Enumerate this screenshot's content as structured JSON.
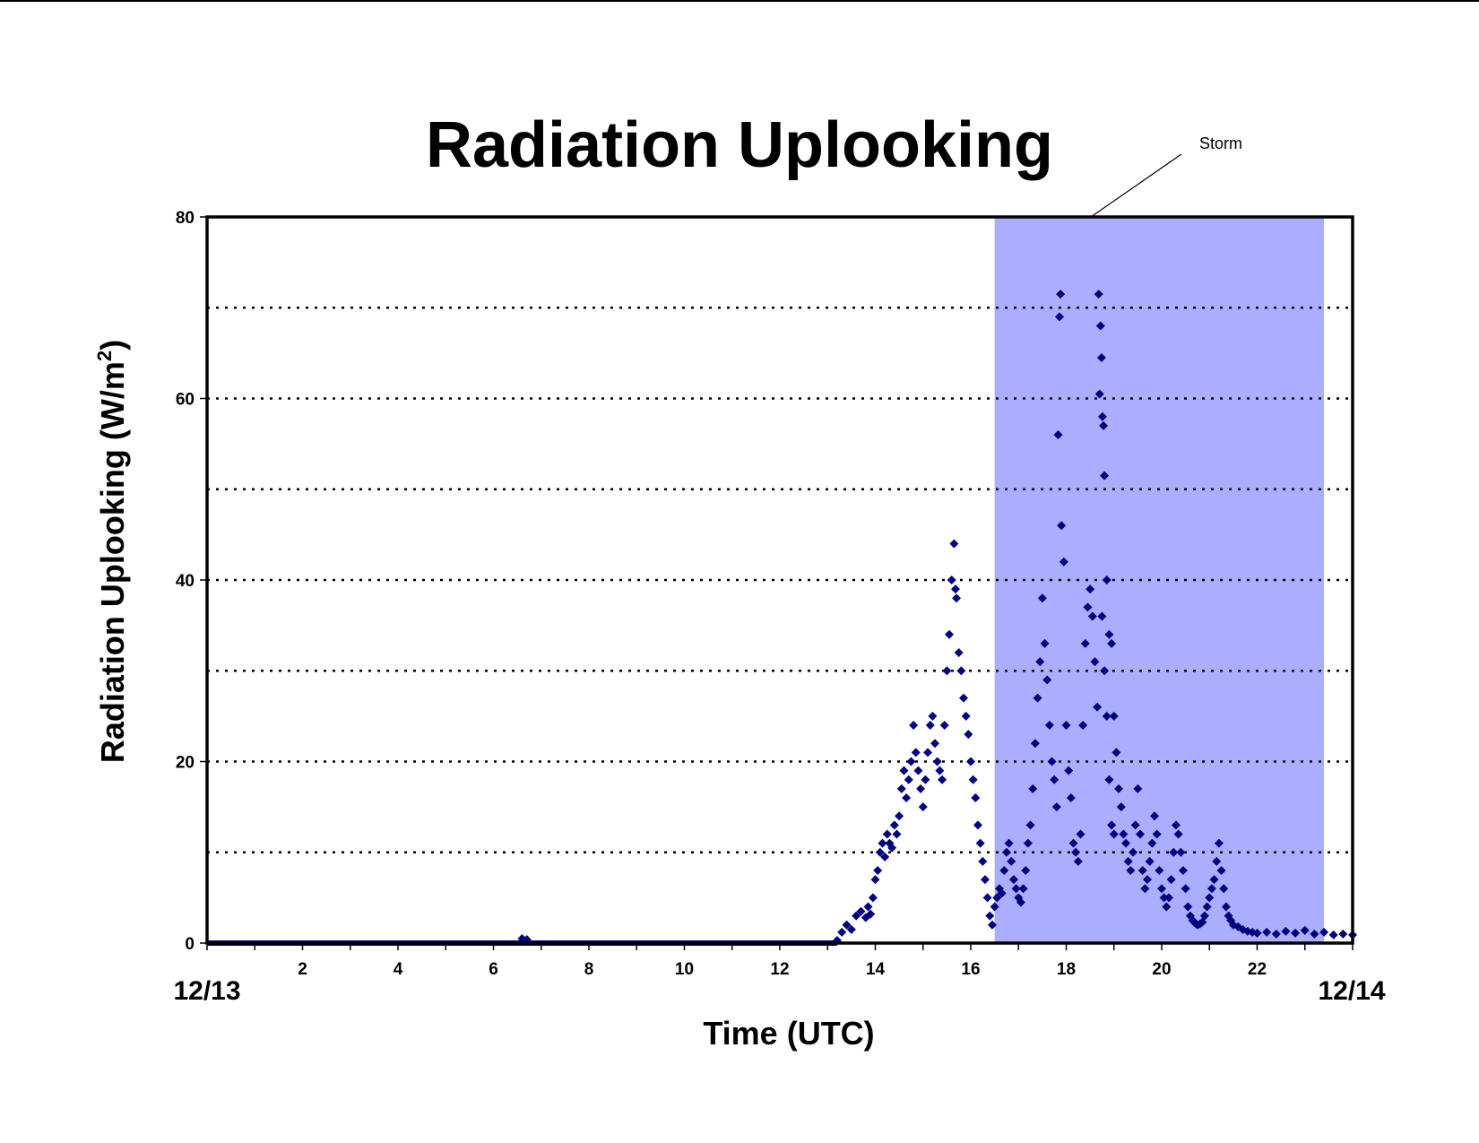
{
  "chart_data": {
    "type": "scatter",
    "title": "Radiation Uplooking",
    "xlabel": "Time (UTC)",
    "ylabel_main": "Radiation Uplooking (W/m",
    "ylabel_sup": "2",
    "ylabel_close": ")",
    "xlim": [
      0,
      24
    ],
    "ylim": [
      0,
      80
    ],
    "x_ticks": [
      2,
      4,
      6,
      8,
      10,
      12,
      14,
      16,
      18,
      20,
      22
    ],
    "y_ticks": [
      0,
      20,
      40,
      60,
      80
    ],
    "gridlines_y": [
      10,
      20,
      30,
      40,
      50,
      60,
      70
    ],
    "x_start_label": "12/13",
    "x_end_label": "12/14",
    "shaded_region": {
      "label": "Storm",
      "x_range": [
        16.5,
        23.4
      ],
      "color": "#aaaefc"
    },
    "marker_color": "#000080",
    "marker": "diamond",
    "series": [
      {
        "points": [
          [
            6.6,
            0.5
          ],
          [
            6.7,
            0.4
          ],
          [
            13.2,
            0.3
          ],
          [
            13.3,
            1.2
          ],
          [
            13.4,
            2
          ],
          [
            13.5,
            1.5
          ],
          [
            13.6,
            3
          ],
          [
            13.7,
            3.5
          ],
          [
            13.8,
            2.8
          ],
          [
            13.85,
            4
          ],
          [
            13.9,
            3.2
          ],
          [
            13.95,
            5
          ],
          [
            14.0,
            7
          ],
          [
            14.05,
            8
          ],
          [
            14.1,
            10
          ],
          [
            14.15,
            11
          ],
          [
            14.2,
            9.5
          ],
          [
            14.25,
            12
          ],
          [
            14.3,
            11
          ],
          [
            14.35,
            10.5
          ],
          [
            14.4,
            13
          ],
          [
            14.45,
            12
          ],
          [
            14.5,
            14
          ],
          [
            14.55,
            17
          ],
          [
            14.6,
            19
          ],
          [
            14.65,
            16
          ],
          [
            14.7,
            18
          ],
          [
            14.75,
            20
          ],
          [
            14.8,
            24
          ],
          [
            14.85,
            21
          ],
          [
            14.9,
            19
          ],
          [
            14.95,
            17
          ],
          [
            15.0,
            15
          ],
          [
            15.05,
            18
          ],
          [
            15.1,
            21
          ],
          [
            15.15,
            24
          ],
          [
            15.2,
            25
          ],
          [
            15.25,
            22
          ],
          [
            15.3,
            20
          ],
          [
            15.35,
            19
          ],
          [
            15.4,
            18
          ],
          [
            15.45,
            24
          ],
          [
            15.5,
            30
          ],
          [
            15.55,
            34
          ],
          [
            15.6,
            40
          ],
          [
            15.65,
            44
          ],
          [
            15.68,
            39
          ],
          [
            15.7,
            38
          ],
          [
            15.75,
            32
          ],
          [
            15.8,
            30
          ],
          [
            15.85,
            27
          ],
          [
            15.9,
            25
          ],
          [
            15.95,
            23
          ],
          [
            16.0,
            20
          ],
          [
            16.05,
            18
          ],
          [
            16.1,
            16
          ],
          [
            16.15,
            13
          ],
          [
            16.2,
            11
          ],
          [
            16.25,
            9
          ],
          [
            16.3,
            7
          ],
          [
            16.35,
            5
          ],
          [
            16.4,
            3
          ],
          [
            16.45,
            2
          ],
          [
            16.5,
            4
          ],
          [
            16.55,
            5
          ],
          [
            16.6,
            6
          ],
          [
            16.65,
            5.5
          ],
          [
            16.7,
            8
          ],
          [
            16.75,
            10
          ],
          [
            16.8,
            11
          ],
          [
            16.85,
            9
          ],
          [
            16.9,
            7
          ],
          [
            16.95,
            6
          ],
          [
            17.0,
            5
          ],
          [
            17.05,
            4.5
          ],
          [
            17.1,
            6
          ],
          [
            17.15,
            8
          ],
          [
            17.2,
            11
          ],
          [
            17.25,
            13
          ],
          [
            17.3,
            17
          ],
          [
            17.35,
            22
          ],
          [
            17.4,
            27
          ],
          [
            17.45,
            31
          ],
          [
            17.5,
            38
          ],
          [
            17.55,
            33
          ],
          [
            17.6,
            29
          ],
          [
            17.65,
            24
          ],
          [
            17.7,
            20
          ],
          [
            17.75,
            18
          ],
          [
            17.8,
            15
          ],
          [
            17.83,
            56
          ],
          [
            17.86,
            69
          ],
          [
            17.88,
            71.5
          ],
          [
            17.9,
            46
          ],
          [
            17.95,
            42
          ],
          [
            18.0,
            24
          ],
          [
            18.05,
            19
          ],
          [
            18.1,
            16
          ],
          [
            18.15,
            11
          ],
          [
            18.2,
            10
          ],
          [
            18.25,
            9
          ],
          [
            18.3,
            12
          ],
          [
            18.35,
            24
          ],
          [
            18.4,
            33
          ],
          [
            18.45,
            37
          ],
          [
            18.5,
            39
          ],
          [
            18.55,
            36
          ],
          [
            18.6,
            31
          ],
          [
            18.65,
            26
          ],
          [
            18.7,
            60.5
          ],
          [
            18.75,
            36
          ],
          [
            18.8,
            30
          ],
          [
            18.85,
            25
          ],
          [
            18.9,
            18
          ],
          [
            18.95,
            13
          ],
          [
            19.0,
            12
          ],
          [
            18.68,
            71.5
          ],
          [
            18.72,
            68
          ],
          [
            18.74,
            64.5
          ],
          [
            18.76,
            58
          ],
          [
            18.78,
            57
          ],
          [
            18.8,
            51.5
          ],
          [
            18.85,
            40
          ],
          [
            18.9,
            34
          ],
          [
            18.95,
            33
          ],
          [
            19.0,
            25
          ],
          [
            19.05,
            21
          ],
          [
            19.1,
            17
          ],
          [
            19.15,
            15
          ],
          [
            19.2,
            12
          ],
          [
            19.25,
            11
          ],
          [
            19.3,
            9
          ],
          [
            19.35,
            8
          ],
          [
            19.4,
            10
          ],
          [
            19.45,
            13
          ],
          [
            19.5,
            17
          ],
          [
            19.55,
            12
          ],
          [
            19.6,
            8
          ],
          [
            19.65,
            6
          ],
          [
            19.7,
            7
          ],
          [
            19.75,
            9
          ],
          [
            19.8,
            11
          ],
          [
            19.85,
            14
          ],
          [
            19.9,
            12
          ],
          [
            19.95,
            8
          ],
          [
            20.0,
            6
          ],
          [
            20.05,
            5
          ],
          [
            20.1,
            4
          ],
          [
            20.15,
            5
          ],
          [
            20.2,
            7
          ],
          [
            20.25,
            10
          ],
          [
            20.3,
            13
          ],
          [
            20.35,
            12
          ],
          [
            20.4,
            10
          ],
          [
            20.45,
            8
          ],
          [
            20.5,
            6
          ],
          [
            20.55,
            4
          ],
          [
            20.6,
            3
          ],
          [
            20.65,
            2.5
          ],
          [
            20.7,
            2.2
          ],
          [
            20.75,
            2
          ],
          [
            20.8,
            2.1
          ],
          [
            20.85,
            2.3
          ],
          [
            20.9,
            3
          ],
          [
            20.95,
            4
          ],
          [
            21.0,
            5
          ],
          [
            21.05,
            6
          ],
          [
            21.1,
            7
          ],
          [
            21.15,
            9
          ],
          [
            21.2,
            11
          ],
          [
            21.25,
            8
          ],
          [
            21.3,
            6
          ],
          [
            21.35,
            4
          ],
          [
            21.4,
            3
          ],
          [
            21.45,
            2.5
          ],
          [
            21.5,
            2
          ],
          [
            21.6,
            1.8
          ],
          [
            21.7,
            1.5
          ],
          [
            21.8,
            1.3
          ],
          [
            21.9,
            1.2
          ],
          [
            22.0,
            1.1
          ],
          [
            22.2,
            1.2
          ],
          [
            22.4,
            1.0
          ],
          [
            22.6,
            1.3
          ],
          [
            22.8,
            1.1
          ],
          [
            23.0,
            1.4
          ],
          [
            23.2,
            1.0
          ],
          [
            23.4,
            1.2
          ],
          [
            23.6,
            0.9
          ],
          [
            23.8,
            1.0
          ],
          [
            24.0,
            0.9
          ]
        ]
      }
    ]
  }
}
